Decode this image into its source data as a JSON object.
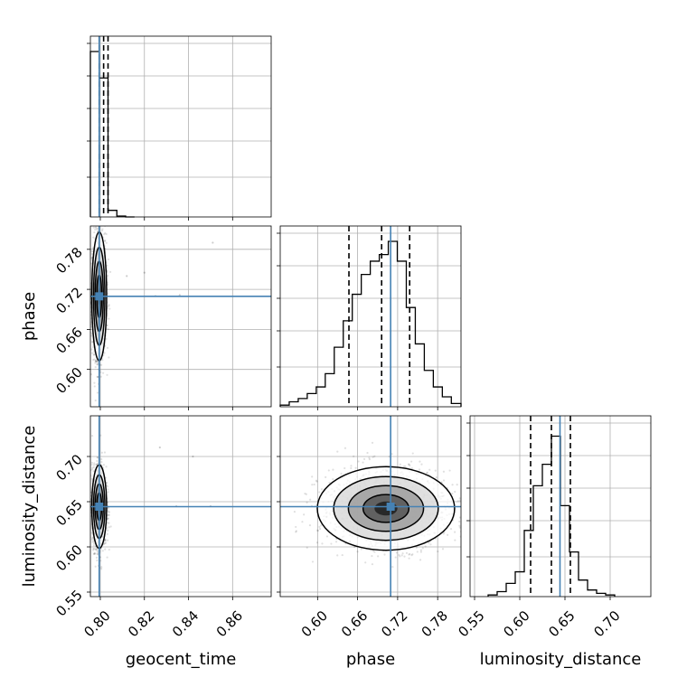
{
  "chart_data": {
    "type": "corner",
    "parameters": [
      "geocent_time",
      "phase",
      "luminosity_distance"
    ],
    "truths": {
      "geocent_time": 0.7995,
      "phase": 0.7095,
      "luminosity_distance": 0.6445
    },
    "truth_color": "#4682b4",
    "grid": true,
    "histograms": [
      {
        "parameter": "geocent_time",
        "range": [
          0.7955,
          0.8775
        ],
        "bin_edges": [
          0.7955,
          0.7995,
          0.8035,
          0.8075,
          0.8115,
          0.8155
        ],
        "counts": [
          1.0,
          0.84,
          0.04,
          0.005,
          0
        ],
        "quantiles": [
          0.7995,
          0.8015,
          0.8035
        ],
        "xticks": [
          0.8,
          0.82,
          0.84,
          0.86
        ],
        "xtick_labels": [
          "0.80",
          "0.82",
          "0.84",
          "0.86"
        ]
      },
      {
        "parameter": "phase",
        "range": [
          0.544,
          0.815
        ],
        "bin_edges": [
          0.544,
          0.5575,
          0.571,
          0.5845,
          0.598,
          0.6115,
          0.625,
          0.6385,
          0.652,
          0.6655,
          0.679,
          0.6925,
          0.706,
          0.7195,
          0.733,
          0.7465,
          0.76,
          0.7735,
          0.787,
          0.8005,
          0.815
        ],
        "counts": [
          0.01,
          0.03,
          0.05,
          0.08,
          0.12,
          0.2,
          0.36,
          0.52,
          0.68,
          0.8,
          0.88,
          0.92,
          1.0,
          0.88,
          0.6,
          0.38,
          0.22,
          0.12,
          0.06,
          0.02
        ],
        "quantiles": [
          0.647,
          0.696,
          0.738
        ],
        "xticks": [
          0.6,
          0.66,
          0.72,
          0.78
        ],
        "xtick_labels": [
          "0.60",
          "0.66",
          "0.72",
          "0.78"
        ]
      },
      {
        "parameter": "luminosity_distance",
        "range": [
          0.545,
          0.745
        ],
        "bin_edges": [
          0.565,
          0.575,
          0.585,
          0.595,
          0.605,
          0.615,
          0.625,
          0.635,
          0.645,
          0.655,
          0.665,
          0.675,
          0.685,
          0.695,
          0.705
        ],
        "counts": [
          0.01,
          0.03,
          0.08,
          0.15,
          0.4,
          0.67,
          0.8,
          0.97,
          0.55,
          0.27,
          0.1,
          0.04,
          0.02,
          0.01
        ],
        "quantiles": [
          0.612,
          0.635,
          0.656
        ],
        "xticks": [
          0.55,
          0.6,
          0.65,
          0.7
        ],
        "xtick_labels": [
          "0.55",
          "0.60",
          "0.65",
          "0.70"
        ]
      }
    ],
    "scatter_panels": [
      {
        "x": "geocent_time",
        "y": "phase",
        "xlim": [
          0.7955,
          0.8775
        ],
        "ylim": [
          0.544,
          0.815
        ],
        "center": [
          0.7995,
          0.7095
        ],
        "spread": [
          0.0016,
          0.046
        ],
        "yticks": [
          0.6,
          0.66,
          0.72,
          0.78
        ],
        "ytick_labels": [
          "0.60",
          "0.66",
          "0.72",
          "0.78"
        ],
        "outliers": [
          [
            0.812,
            0.74
          ],
          [
            0.82,
            0.745
          ],
          [
            0.836,
            0.7115
          ],
          [
            0.851,
            0.79
          ],
          [
            0.825,
            0.71
          ]
        ]
      },
      {
        "x": "geocent_time",
        "y": "luminosity_distance",
        "xlim": [
          0.7955,
          0.8775
        ],
        "ylim": [
          0.545,
          0.745
        ],
        "center": [
          0.7995,
          0.6445
        ],
        "spread": [
          0.0016,
          0.022
        ],
        "yticks": [
          0.55,
          0.6,
          0.65,
          0.7
        ],
        "ytick_labels": [
          "0.55",
          "0.60",
          "0.65",
          "0.70"
        ],
        "outliers": [
          [
            0.827,
            0.71
          ],
          [
            0.8345,
            0.645
          ],
          [
            0.85,
            0.645
          ],
          [
            0.842,
            0.7
          ]
        ]
      },
      {
        "x": "phase",
        "y": "luminosity_distance",
        "xlim": [
          0.544,
          0.815
        ],
        "ylim": [
          0.545,
          0.745
        ],
        "center": [
          0.7025,
          0.6425
        ],
        "spread": [
          0.049,
          0.022
        ],
        "outliers": []
      }
    ]
  }
}
